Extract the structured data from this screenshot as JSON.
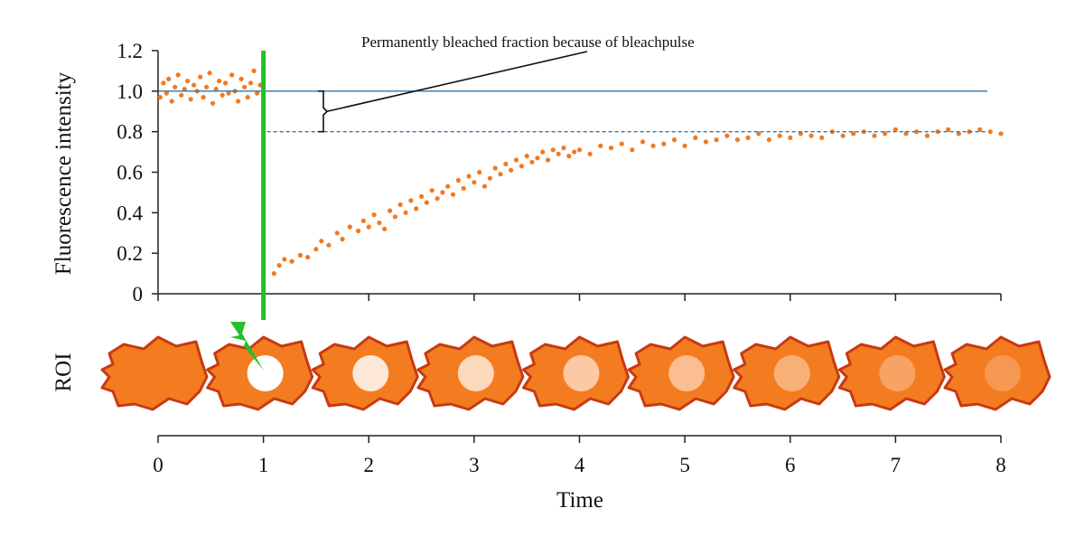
{
  "colors": {
    "points": "#f07a22",
    "reference_line": "#2e75b6",
    "bleach_marker": "#22c02a",
    "cell_fill": "#f47c20",
    "cell_outline": "#c73a12",
    "axis": "#222222"
  },
  "icons": {
    "bleach_pulse": "lightning-bolt-icon",
    "cell": "cell-icon"
  },
  "annotation": "Permanently bleached fraction because of bleachpulse",
  "roi_label": "ROI",
  "roi_spot_intensity": [
    0,
    1.0,
    0.82,
    0.7,
    0.6,
    0.5,
    0.4,
    0.3,
    0.22
  ],
  "chart_data": {
    "type": "scatter",
    "title": "",
    "xlabel": "Time",
    "ylabel": "Fluorescence intensity",
    "xlim": [
      0,
      8
    ],
    "ylim": [
      0,
      1.2
    ],
    "x_ticks": [
      "0",
      "1",
      "2",
      "3",
      "4",
      "5",
      "6",
      "7",
      "8"
    ],
    "y_ticks": [
      "0",
      "0.2",
      "0.4",
      "0.6",
      "0.8",
      "1.0",
      "1.2"
    ],
    "bleach_time": 1,
    "pre_bleach_level": 1.0,
    "plateau_level": 0.8,
    "series": [
      {
        "x": [
          0.02,
          0.05,
          0.08,
          0.1,
          0.13,
          0.16,
          0.19,
          0.22,
          0.25,
          0.28,
          0.31,
          0.34,
          0.37,
          0.4,
          0.43,
          0.46,
          0.49,
          0.52,
          0.55,
          0.58,
          0.61,
          0.64,
          0.67,
          0.7,
          0.73,
          0.76,
          0.79,
          0.82,
          0.85,
          0.88,
          0.91,
          0.94,
          0.97,
          1.1,
          1.15,
          1.2,
          1.27,
          1.35,
          1.42,
          1.5,
          1.55,
          1.62,
          1.7,
          1.75,
          1.82,
          1.9,
          1.95,
          2.0,
          2.05,
          2.1,
          2.15,
          2.2,
          2.25,
          2.3,
          2.35,
          2.4,
          2.45,
          2.5,
          2.55,
          2.6,
          2.65,
          2.7,
          2.75,
          2.8,
          2.85,
          2.9,
          2.95,
          3.0,
          3.05,
          3.1,
          3.15,
          3.2,
          3.25,
          3.3,
          3.35,
          3.4,
          3.45,
          3.5,
          3.55,
          3.6,
          3.65,
          3.7,
          3.75,
          3.8,
          3.85,
          3.9,
          3.95,
          4.0,
          4.1,
          4.2,
          4.3,
          4.4,
          4.5,
          4.6,
          4.7,
          4.8,
          4.9,
          5.0,
          5.1,
          5.2,
          5.3,
          5.4,
          5.5,
          5.6,
          5.7,
          5.8,
          5.9,
          6.0,
          6.1,
          6.2,
          6.3,
          6.4,
          6.5,
          6.6,
          6.7,
          6.8,
          6.9,
          7.0,
          7.1,
          7.2,
          7.3,
          7.4,
          7.5,
          7.6,
          7.7,
          7.8,
          7.9,
          8.0
        ],
        "y": [
          0.97,
          1.04,
          0.99,
          1.06,
          0.95,
          1.02,
          1.08,
          0.98,
          1.01,
          1.05,
          0.96,
          1.03,
          1.0,
          1.07,
          0.97,
          1.02,
          1.09,
          0.94,
          1.01,
          1.05,
          0.98,
          1.04,
          0.99,
          1.08,
          1.0,
          0.95,
          1.06,
          1.02,
          0.97,
          1.04,
          1.1,
          0.99,
          1.03,
          0.1,
          0.14,
          0.17,
          0.16,
          0.19,
          0.18,
          0.22,
          0.26,
          0.24,
          0.3,
          0.27,
          0.33,
          0.31,
          0.36,
          0.33,
          0.39,
          0.35,
          0.32,
          0.41,
          0.38,
          0.44,
          0.4,
          0.46,
          0.42,
          0.48,
          0.45,
          0.51,
          0.47,
          0.5,
          0.53,
          0.49,
          0.56,
          0.52,
          0.58,
          0.55,
          0.6,
          0.53,
          0.57,
          0.62,
          0.59,
          0.64,
          0.61,
          0.66,
          0.63,
          0.68,
          0.65,
          0.67,
          0.7,
          0.66,
          0.71,
          0.69,
          0.72,
          0.68,
          0.7,
          0.71,
          0.69,
          0.73,
          0.72,
          0.74,
          0.71,
          0.75,
          0.73,
          0.74,
          0.76,
          0.73,
          0.77,
          0.75,
          0.76,
          0.78,
          0.76,
          0.77,
          0.79,
          0.76,
          0.78,
          0.77,
          0.79,
          0.78,
          0.77,
          0.8,
          0.78,
          0.79,
          0.8,
          0.78,
          0.79,
          0.81,
          0.79,
          0.8,
          0.78,
          0.8,
          0.81,
          0.79,
          0.8,
          0.81,
          0.8,
          0.79
        ]
      }
    ]
  }
}
